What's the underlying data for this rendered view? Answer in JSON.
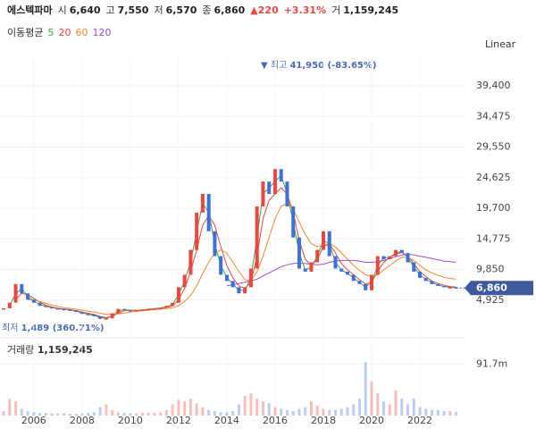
{
  "header": {
    "name": "에스텍파마",
    "quotes": [
      {
        "label": "시",
        "value": "6,640"
      },
      {
        "label": "고",
        "value": "7,550"
      },
      {
        "label": "저",
        "value": "6,570"
      },
      {
        "label": "종",
        "value": "6,860"
      }
    ],
    "change": "▲220",
    "change_pct": "+3.31%",
    "volume_label": "거",
    "volume": "1,159,245"
  },
  "chart_data": {
    "type": "candlestick",
    "scale_label": "Linear",
    "x": [
      2004.75,
      2005,
      2005.25,
      2005.5,
      2005.75,
      2006,
      2006.25,
      2006.5,
      2006.75,
      2007,
      2007.25,
      2007.5,
      2007.75,
      2008,
      2008.25,
      2008.5,
      2008.75,
      2009,
      2009.25,
      2009.5,
      2009.75,
      2010,
      2010.25,
      2010.5,
      2010.75,
      2011,
      2011.25,
      2011.5,
      2011.75,
      2012,
      2012.25,
      2012.5,
      2012.75,
      2013,
      2013.25,
      2013.5,
      2013.75,
      2014,
      2014.25,
      2014.5,
      2014.75,
      2015,
      2015.25,
      2015.5,
      2015.75,
      2016,
      2016.25,
      2016.5,
      2016.75,
      2017,
      2017.25,
      2017.5,
      2017.75,
      2018,
      2018.25,
      2018.5,
      2018.75,
      2019,
      2019.25,
      2019.5,
      2019.75,
      2020,
      2020.25,
      2020.5,
      2020.75,
      2021,
      2021.25,
      2021.5,
      2021.75,
      2022,
      2022.25,
      2022.5,
      2022.75,
      2023,
      2023.25,
      2023.5
    ],
    "xlim": [
      2004.6,
      2023.85
    ],
    "xticks": [
      2006,
      2008,
      2010,
      2012,
      2014,
      2016,
      2018,
      2020,
      2022
    ],
    "values": [
      3600,
      4500,
      7500,
      6000,
      5000,
      4500,
      4000,
      3800,
      3600,
      3500,
      3400,
      3300,
      3000,
      2700,
      2600,
      2300,
      1900,
      2000,
      2800,
      3500,
      3300,
      3200,
      3300,
      3400,
      3500,
      3600,
      3700,
      4000,
      4500,
      7000,
      9000,
      13000,
      19000,
      22000,
      16000,
      12000,
      9000,
      8000,
      7000,
      6000,
      7000,
      10000,
      20000,
      24000,
      22000,
      26000,
      24000,
      20000,
      15000,
      10000,
      9500,
      11000,
      13000,
      16000,
      12000,
      10000,
      9500,
      9000,
      8000,
      7500,
      6500,
      9000,
      12000,
      11500,
      12000,
      13000,
      12500,
      11000,
      9500,
      8500,
      8000,
      7500,
      7200,
      7000,
      7000,
      6860
    ],
    "up_color": "#e8483f",
    "down_color": "#3f6fd8",
    "ylim": [
      0,
      43000
    ],
    "yticks": [
      {
        "value": 4925,
        "label": "4,925"
      },
      {
        "value": 9850,
        "label": "9,850"
      },
      {
        "value": 14775,
        "label": "14,775"
      },
      {
        "value": 19700,
        "label": "19,700"
      },
      {
        "value": 24625,
        "label": "24,625"
      },
      {
        "value": 29550,
        "label": "29,550"
      },
      {
        "value": 34475,
        "label": "34,475"
      },
      {
        "value": 39400,
        "label": "39,400"
      }
    ],
    "grid": true,
    "last_value_label": "6,860",
    "annotations": [
      {
        "label": "▼ 최고",
        "value": "41,950 (-83.65%)"
      },
      {
        "label": "최저",
        "value": "1,489 (360.71%)"
      }
    ],
    "moving_averages": {
      "label": "이동평균",
      "series": [
        {
          "name": "5",
          "color": "#3aa64a",
          "values": [
            null,
            4050,
            6000,
            6750,
            5500,
            4750,
            4250,
            3900,
            3700,
            3550,
            3450,
            3350,
            3150,
            2850,
            2650,
            2450,
            2100,
            1950,
            2400,
            3150,
            3400,
            3250,
            3250,
            3350,
            3450,
            3550,
            3650,
            3850,
            4250,
            5750,
            8000,
            11000,
            16000,
            20500,
            19000,
            14000,
            10500,
            8500,
            7500,
            6500,
            6500,
            8500,
            15000,
            22000,
            23000,
            24000,
            25000,
            22000,
            17500,
            12500,
            9750,
            10250,
            12000,
            14500,
            14000,
            11000,
            9750,
            9250,
            8500,
            7750,
            7000,
            7750,
            10500,
            11750,
            11750,
            12500,
            12750,
            11750,
            10250,
            9000,
            8250,
            7750,
            7350,
            7100,
            7000,
            6930
          ]
        },
        {
          "name": "20",
          "color": "#e0483f",
          "values": [
            null,
            null,
            5000,
            6000,
            5800,
            5200,
            4600,
            4100,
            3800,
            3600,
            3500,
            3400,
            3200,
            3000,
            2800,
            2600,
            2300,
            2100,
            2300,
            2800,
            3200,
            3300,
            3300,
            3300,
            3400,
            3500,
            3600,
            3750,
            4000,
            5000,
            6800,
            9500,
            13000,
            17000,
            18500,
            17000,
            13500,
            10500,
            8500,
            7200,
            6800,
            7800,
            12000,
            18000,
            21000,
            22000,
            23000,
            22000,
            19000,
            14500,
            11500,
            10500,
            11500,
            13500,
            14000,
            12500,
            10800,
            9800,
            9000,
            8200,
            7500,
            7800,
            9500,
            11000,
            11800,
            12300,
            12600,
            12000,
            10800,
            9500,
            8700,
            8000,
            7600,
            7300,
            7100,
            7000
          ]
        },
        {
          "name": "60",
          "color": "#f08a2c",
          "values": [
            null,
            null,
            null,
            null,
            5000,
            4900,
            4700,
            4400,
            4100,
            3900,
            3700,
            3600,
            3450,
            3300,
            3150,
            3000,
            2800,
            2650,
            2600,
            2700,
            2850,
            3000,
            3100,
            3200,
            3300,
            3400,
            3450,
            3550,
            3700,
            4000,
            4700,
            5700,
            7200,
            9200,
            11000,
            12500,
            13000,
            12500,
            11000,
            9500,
            8200,
            8000,
            9500,
            12000,
            15000,
            18000,
            20000,
            20500,
            19500,
            17500,
            15500,
            14000,
            13500,
            13800,
            14000,
            13500,
            12500,
            11500,
            10500,
            9700,
            9000,
            8700,
            9000,
            9800,
            10500,
            11200,
            11800,
            11800,
            11300,
            10500,
            9800,
            9300,
            8900,
            8600,
            8400,
            8300
          ]
        },
        {
          "name": "120",
          "color": "#9b4fd8",
          "values": [
            null,
            null,
            null,
            null,
            null,
            null,
            null,
            null,
            null,
            null,
            null,
            null,
            null,
            null,
            null,
            null,
            null,
            null,
            null,
            null,
            null,
            null,
            null,
            null,
            null,
            null,
            null,
            null,
            null,
            null,
            null,
            null,
            null,
            null,
            null,
            null,
            null,
            7200,
            7400,
            7600,
            7800,
            8000,
            8300,
            8800,
            9300,
            9800,
            10300,
            10600,
            10800,
            10900,
            10800,
            10700,
            10600,
            10700,
            11000,
            11200,
            11300,
            11300,
            11300,
            11200,
            11000,
            11000,
            11100,
            11300,
            11600,
            11900,
            12200,
            12300,
            12200,
            12000,
            11800,
            11600,
            11400,
            11200,
            11100,
            11000
          ]
        }
      ]
    },
    "volume": {
      "label": "거래량",
      "value_label": "1,159,245",
      "values": [
        8000000,
        30000000,
        25000000,
        12000000,
        8000000,
        6000000,
        5000000,
        5000000,
        4000000,
        4000000,
        4000000,
        3000000,
        3000000,
        4000000,
        5000000,
        6000000,
        15000000,
        20000000,
        10000000,
        6000000,
        5000000,
        4000000,
        4000000,
        5000000,
        5000000,
        5000000,
        6000000,
        10000000,
        20000000,
        28000000,
        25000000,
        30000000,
        22000000,
        15000000,
        10000000,
        8000000,
        6000000,
        6000000,
        8000000,
        20000000,
        35000000,
        40000000,
        30000000,
        25000000,
        22000000,
        15000000,
        12000000,
        10000000,
        8000000,
        12000000,
        15000000,
        25000000,
        18000000,
        12000000,
        10000000,
        10000000,
        12000000,
        15000000,
        20000000,
        30000000,
        95000000,
        60000000,
        40000000,
        25000000,
        20000000,
        45000000,
        30000000,
        20000000,
        30000000,
        15000000,
        12000000,
        10000000,
        10000000,
        8000000,
        8000000,
        6000000
      ],
      "ylim": [
        0,
        135000000
      ],
      "yticks": [
        {
          "value": 91700000,
          "label": "91.7m"
        }
      ]
    }
  }
}
